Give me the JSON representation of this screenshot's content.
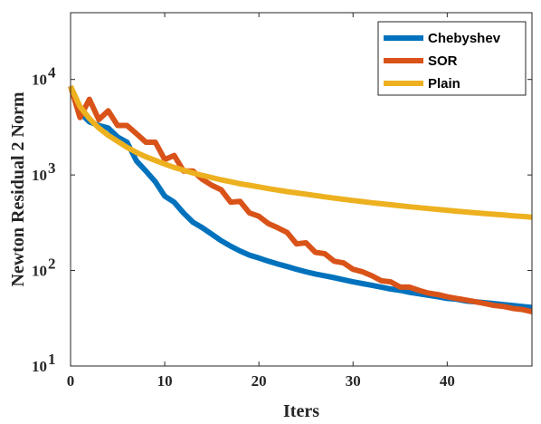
{
  "chart_data": {
    "type": "line",
    "xlabel": "Iters",
    "ylabel": "Newton Residual 2 Norm",
    "xlim": [
      0,
      49
    ],
    "ylim": [
      10,
      50000
    ],
    "yscale": "log",
    "grid": false,
    "legend_position": "top-right",
    "x_ticks": [
      {
        "value": 0,
        "label": "0"
      },
      {
        "value": 10,
        "label": "10"
      },
      {
        "value": 20,
        "label": "20"
      },
      {
        "value": 30,
        "label": "30"
      },
      {
        "value": 40,
        "label": "40"
      }
    ],
    "y_ticks": [
      {
        "value": 10,
        "base": "10",
        "exp": "1"
      },
      {
        "value": 100,
        "base": "10",
        "exp": "2"
      },
      {
        "value": 1000,
        "base": "10",
        "exp": "3"
      },
      {
        "value": 10000,
        "base": "10",
        "exp": "4"
      }
    ],
    "x": [
      0,
      1,
      2,
      3,
      4,
      5,
      6,
      7,
      8,
      9,
      10,
      11,
      12,
      13,
      14,
      15,
      16,
      17,
      18,
      19,
      20,
      21,
      22,
      23,
      24,
      25,
      26,
      27,
      28,
      29,
      30,
      31,
      32,
      33,
      34,
      35,
      36,
      37,
      38,
      39,
      40,
      41,
      42,
      43,
      44,
      45,
      46,
      47,
      48,
      49
    ],
    "series": [
      {
        "name": "Chebyshev",
        "color": "#0072BD",
        "values": [
          8500,
          4500,
          3600,
          3300,
          3100,
          2500,
          2200,
          1400,
          1100,
          850,
          600,
          520,
          400,
          320,
          280,
          240,
          205,
          180,
          160,
          145,
          135,
          125,
          117,
          110,
          103,
          97,
          92,
          88,
          84,
          80,
          76,
          73,
          70,
          67,
          64,
          62,
          59,
          57,
          55,
          53,
          51,
          50,
          48,
          47,
          46,
          45,
          44,
          43,
          42,
          41
        ]
      },
      {
        "name": "SOR",
        "color": "#D95319",
        "values": [
          8500,
          4000,
          6200,
          3800,
          4700,
          3300,
          3300,
          2700,
          2200,
          2200,
          1450,
          1600,
          1100,
          1100,
          900,
          780,
          700,
          520,
          530,
          400,
          370,
          310,
          280,
          250,
          190,
          195,
          155,
          150,
          125,
          120,
          103,
          97,
          88,
          78,
          76,
          67,
          67,
          62,
          58,
          56,
          53,
          51,
          49,
          47,
          45,
          43,
          42,
          40,
          39,
          37
        ]
      },
      {
        "name": "Plain",
        "color": "#EDB120",
        "values": [
          8500,
          5200,
          3900,
          3100,
          2600,
          2250,
          1950,
          1720,
          1550,
          1420,
          1300,
          1200,
          1120,
          1050,
          990,
          940,
          890,
          850,
          810,
          780,
          750,
          720,
          695,
          670,
          650,
          630,
          610,
          590,
          572,
          556,
          540,
          526,
          512,
          500,
          488,
          476,
          465,
          455,
          445,
          436,
          427,
          418,
          410,
          402,
          395,
          388,
          381,
          374,
          368,
          362
        ]
      }
    ]
  }
}
